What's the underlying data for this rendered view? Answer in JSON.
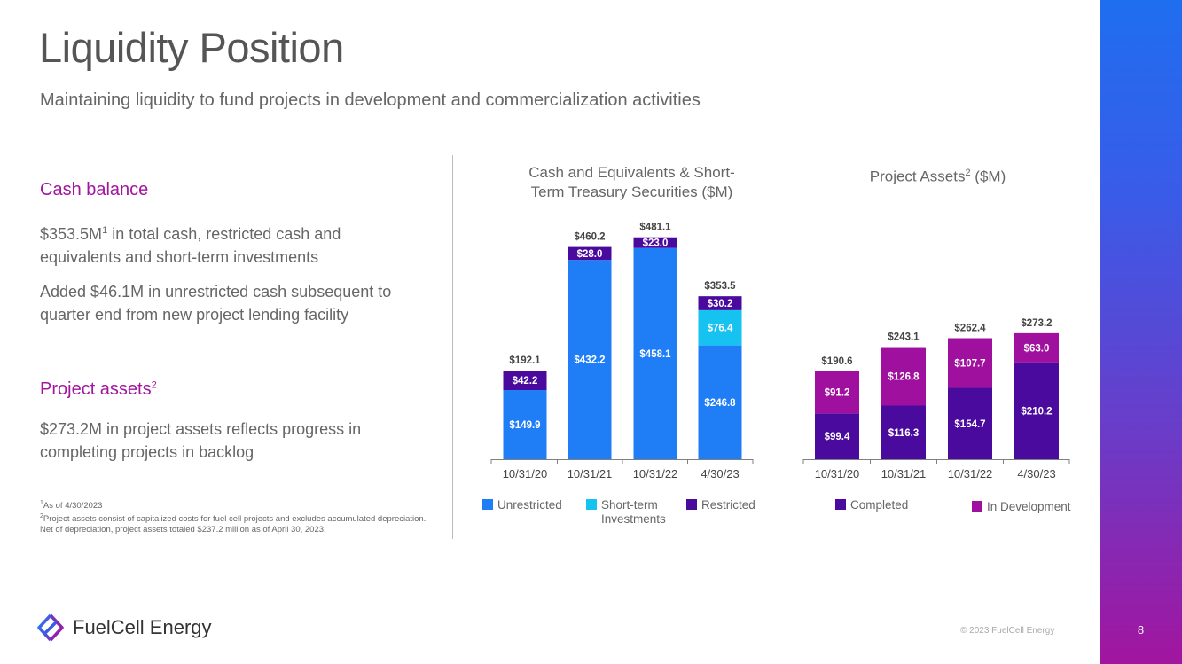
{
  "title": "Liquidity Position",
  "subtitle": "Maintaining liquidity to fund projects in development and commercialization activities",
  "cash_section": {
    "heading": "Cash balance",
    "para1_prefix": "$353.5M",
    "para1_sup": "1",
    "para1_rest": " in total cash, restricted cash and equivalents and short-term investments",
    "para2": "Added $46.1M in unrestricted cash subsequent to quarter end from new project lending facility"
  },
  "project_section": {
    "heading": "Project assets",
    "heading_sup": "2",
    "para": "$273.2M in project assets reflects progress in completing projects in backlog"
  },
  "footnotes": {
    "n1_sup": "1",
    "n1": "As of 4/30/2023",
    "n2_sup": "2",
    "n2": "Project assets consist of capitalized costs for fuel cell projects and excludes accumulated depreciation. Net of depreciation, project assets totaled $237.2 million as of April 30, 2023."
  },
  "brand": {
    "name": "FuelCell Energy",
    "copyright": "© 2023 FuelCell Energy",
    "page": "8"
  },
  "colors": {
    "unrestricted": "#1f7ef5",
    "short_term": "#16c2ef",
    "restricted": "#4b0a9e",
    "completed": "#4b0a9e",
    "in_development": "#a0109e"
  },
  "chart_data": [
    {
      "type": "bar",
      "stacked": true,
      "title_line1": "Cash and Equivalents & Short-",
      "title_line2": "Term Treasury Securities ($M)",
      "categories": [
        "10/31/20",
        "10/31/21",
        "10/31/22",
        "4/30/23"
      ],
      "series": [
        {
          "name": "Unrestricted",
          "values": [
            149.9,
            432.2,
            458.1,
            246.8
          ],
          "labels": [
            "$149.9",
            "$432.2",
            "$458.1",
            "$246.8"
          ]
        },
        {
          "name": "Short-term Investments",
          "legend_line1": "Short-term",
          "legend_line2": "Investments",
          "values": [
            0,
            0,
            0,
            76.4
          ],
          "labels": [
            "",
            "",
            "",
            "$76.4"
          ]
        },
        {
          "name": "Restricted",
          "values": [
            42.2,
            28.0,
            23.0,
            30.2
          ],
          "labels": [
            "$42.2",
            "$28.0",
            "$23.0",
            "$30.2"
          ]
        }
      ],
      "totals": [
        192.1,
        460.2,
        481.1,
        353.5
      ],
      "total_labels": [
        "$192.1",
        "$460.2",
        "$481.1",
        "$353.5"
      ]
    },
    {
      "type": "bar",
      "stacked": true,
      "title_main": "Project Assets",
      "title_sup": "2",
      "title_rest": " ($M)",
      "categories": [
        "10/31/20",
        "10/31/21",
        "10/31/22",
        "4/30/23"
      ],
      "series": [
        {
          "name": "Completed",
          "values": [
            99.4,
            116.3,
            154.7,
            210.2
          ],
          "labels": [
            "$99.4",
            "$116.3",
            "$154.7",
            "$210.2"
          ]
        },
        {
          "name": "In Development",
          "values": [
            91.2,
            126.8,
            107.7,
            63.0
          ],
          "labels": [
            "$91.2",
            "$126.8",
            "$107.7",
            "$63.0"
          ]
        }
      ],
      "totals": [
        190.6,
        243.1,
        262.4,
        273.2
      ],
      "total_labels": [
        "$190.6",
        "$243.1",
        "$262.4",
        "$273.2"
      ]
    }
  ]
}
